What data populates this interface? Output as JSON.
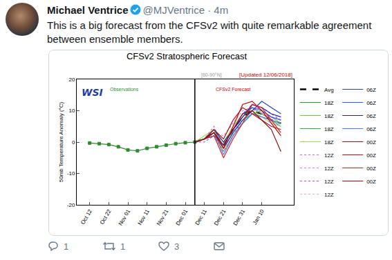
{
  "tweet": {
    "name": "Michael Ventrice",
    "handle": "@MJVentrice · 4m",
    "text": "This is a big forecast from the CFSv2 with quite remarkable agreement between ensemble members.",
    "replies": 1,
    "retweets": 1,
    "likes": 3
  },
  "chart_data": {
    "type": "line",
    "title": "CFSv2 Stratospheric Forecast",
    "annotations": [
      "WSI",
      "[60-90°N]",
      "[Updated 12/06/2018]",
      "Observations",
      "CFSv2 Forecast"
    ],
    "y_label": "50mb Temperature Anomaly (°C)",
    "categories": [
      "Oct 12",
      null,
      "Oct 22",
      null,
      "Nov 01",
      null,
      "Nov 11",
      null,
      "Nov 21",
      null,
      "Dec 01",
      null,
      "Dec 11",
      null,
      "Dec 21",
      null,
      "Dec 31",
      null,
      "Jan 10",
      null,
      null
    ],
    "ylim": [
      -20,
      20
    ],
    "yticks": [
      -20,
      -10,
      0,
      10,
      20
    ],
    "grid": false,
    "legend": "right",
    "series": [
      {
        "color": "#2e8b2e",
        "marker": "square",
        "values": [
          -0.3,
          -0.5,
          -0.8,
          -1.5,
          -2.5,
          -2.8,
          -2,
          -1.5,
          -1,
          -0.5,
          -0.2,
          0,
          null,
          null,
          null,
          null,
          null,
          null,
          null,
          null,
          null
        ]
      },
      {
        "name": "Avg",
        "color": "#000000",
        "line_style": "dash",
        "values": [
          null,
          null,
          null,
          null,
          null,
          null,
          null,
          null,
          null,
          null,
          null,
          0,
          1,
          3,
          -1,
          4,
          8,
          10,
          9,
          7,
          6
        ]
      },
      {
        "name": "18Z",
        "color": "#2ca02c",
        "values": [
          null,
          null,
          null,
          null,
          null,
          null,
          null,
          null,
          null,
          null,
          null,
          0,
          1,
          4,
          -2,
          3,
          7,
          9,
          8,
          7,
          6
        ]
      },
      {
        "name": "18Z",
        "color": "#66cc33",
        "values": [
          null,
          null,
          null,
          null,
          null,
          null,
          null,
          null,
          null,
          null,
          null,
          0,
          1,
          3,
          -3,
          2,
          6,
          9,
          10,
          8,
          6
        ]
      },
      {
        "name": "18Z",
        "color": "#33aa55",
        "values": [
          null,
          null,
          null,
          null,
          null,
          null,
          null,
          null,
          null,
          null,
          null,
          0,
          1,
          2,
          -1,
          4,
          8,
          11,
          9,
          7,
          5
        ]
      },
      {
        "name": "18Z",
        "color": "#99dd44",
        "values": [
          null,
          null,
          null,
          null,
          null,
          null,
          null,
          null,
          null,
          null,
          null,
          0,
          2,
          4,
          0,
          5,
          9,
          10,
          8,
          6,
          5
        ]
      },
      {
        "name": "12Z",
        "color": "#cc66cc",
        "line_style": "dot",
        "values": [
          null,
          null,
          null,
          null,
          null,
          null,
          null,
          null,
          null,
          null,
          null,
          0,
          1,
          5,
          -2,
          3,
          9,
          12,
          10,
          7,
          6
        ]
      },
      {
        "name": "12Z",
        "color": "#e07ad0",
        "line_style": "dot",
        "values": [
          null,
          null,
          null,
          null,
          null,
          null,
          null,
          null,
          null,
          null,
          null,
          0,
          1,
          3,
          2,
          6,
          10,
          11,
          9,
          8,
          7
        ]
      },
      {
        "name": "12Z",
        "color": "#b050b0",
        "line_style": "dot",
        "values": [
          null,
          null,
          null,
          null,
          null,
          null,
          null,
          null,
          null,
          null,
          null,
          0,
          0,
          2,
          -3,
          2,
          7,
          10,
          11,
          9,
          7
        ]
      },
      {
        "name": "12Z",
        "color": "#f0a0e0",
        "line_style": "dot",
        "values": [
          null,
          null,
          null,
          null,
          null,
          null,
          null,
          null,
          null,
          null,
          null,
          0,
          1,
          3,
          -1,
          5,
          8,
          9,
          8,
          6,
          5
        ]
      },
      {
        "name": "06Z",
        "color": "#1f3fcf",
        "values": [
          null,
          null,
          null,
          null,
          null,
          null,
          null,
          null,
          null,
          null,
          null,
          0,
          1,
          3,
          -2,
          3,
          7,
          10,
          13,
          11,
          9
        ]
      },
      {
        "name": "06Z",
        "color": "#3355ff",
        "values": [
          null,
          null,
          null,
          null,
          null,
          null,
          null,
          null,
          null,
          null,
          null,
          0,
          1,
          2,
          -1,
          4,
          9,
          11,
          10,
          8,
          7
        ]
      },
      {
        "name": "06Z",
        "color": "#2020a0",
        "values": [
          null,
          null,
          null,
          null,
          null,
          null,
          null,
          null,
          null,
          null,
          null,
          0,
          1,
          4,
          0,
          4,
          8,
          12,
          11,
          9,
          8
        ]
      },
      {
        "name": "06Z",
        "color": "#5577ee",
        "values": [
          null,
          null,
          null,
          null,
          null,
          null,
          null,
          null,
          null,
          null,
          null,
          0,
          1,
          3,
          -4,
          2,
          6,
          9,
          8,
          7,
          6
        ]
      },
      {
        "name": "00Z",
        "color": "#cc0000",
        "values": [
          null,
          null,
          null,
          null,
          null,
          null,
          null,
          null,
          null,
          null,
          null,
          0,
          1,
          3,
          -2,
          5,
          12,
          13,
          10,
          6,
          2
        ]
      },
      {
        "name": "00Z",
        "color": "#aa1122",
        "values": [
          null,
          null,
          null,
          null,
          null,
          null,
          null,
          null,
          null,
          null,
          null,
          0,
          1,
          4,
          1,
          7,
          11,
          9,
          7,
          5,
          4
        ]
      },
      {
        "name": "00Z",
        "color": "#e02020",
        "values": [
          null,
          null,
          null,
          null,
          null,
          null,
          null,
          null,
          null,
          null,
          null,
          0,
          1,
          2,
          -5,
          1,
          6,
          12,
          11,
          7,
          3
        ]
      },
      {
        "name": "00Z",
        "color": "#881111",
        "values": [
          null,
          null,
          null,
          null,
          null,
          null,
          null,
          null,
          null,
          null,
          null,
          0,
          1,
          3,
          -1,
          4,
          9,
          10,
          7,
          4,
          -3
        ]
      }
    ]
  }
}
